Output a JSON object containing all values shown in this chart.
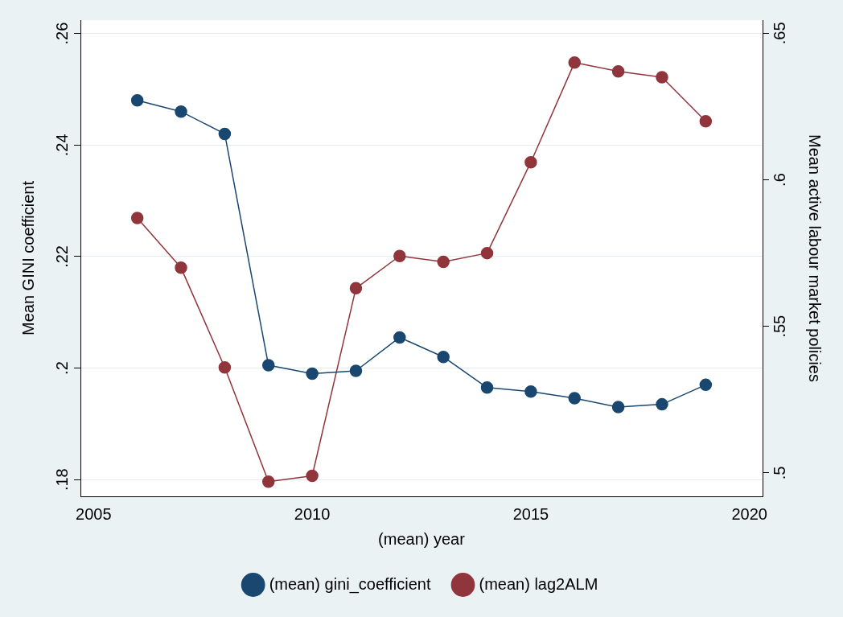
{
  "chart_data": {
    "type": "line",
    "xlabel": "(mean) year",
    "ylabel": "Mean GINI coefficient",
    "y2label": "Mean active labour market policies",
    "x": [
      2006,
      2007,
      2008,
      2009,
      2010,
      2011,
      2012,
      2013,
      2014,
      2015,
      2016,
      2017,
      2018,
      2019
    ],
    "series": [
      {
        "name": "(mean) gini_coefficient",
        "color": "#1a476f",
        "values": [
          0.248,
          0.246,
          0.242,
          0.2005,
          0.199,
          0.1995,
          0.2055,
          0.202,
          0.1965,
          0.1958,
          0.1946,
          0.193,
          0.1935,
          0.197
        ]
      },
      {
        "name": "(mean) lag2ALM",
        "color": "#90353b",
        "axis": "y2",
        "values": [
          0.587,
          0.57,
          0.536,
          0.497,
          0.499,
          0.563,
          0.574,
          0.572,
          0.575,
          0.606,
          0.64,
          0.637,
          0.635,
          0.62
        ]
      }
    ],
    "xlim": [
      2004.7,
      2020.3
    ],
    "xticks": [
      2005,
      2010,
      2015,
      2020
    ],
    "ylim": [
      0.177,
      0.2624
    ],
    "yticks": [
      {
        "value": 0.18,
        "label": ".18"
      },
      {
        "value": 0.2,
        "label": ".2"
      },
      {
        "value": 0.22,
        "label": ".22"
      },
      {
        "value": 0.24,
        "label": ".24"
      },
      {
        "value": 0.26,
        "label": ".26"
      }
    ],
    "y2lim": [
      0.492,
      0.6545
    ],
    "y2ticks": [
      {
        "value": 0.5,
        "label": ".5"
      },
      {
        "value": 0.55,
        "label": ".55"
      },
      {
        "value": 0.6,
        "label": ".6"
      },
      {
        "value": 0.65,
        "label": ".65"
      }
    ],
    "grid": "y",
    "legend": "bottom",
    "marker": "circle",
    "line_style": "solid"
  }
}
